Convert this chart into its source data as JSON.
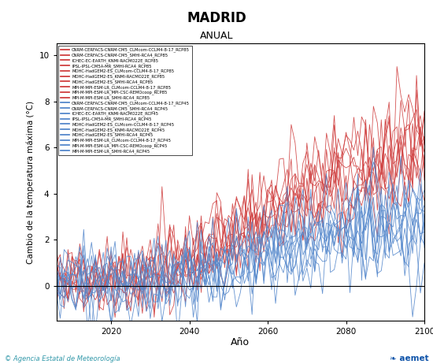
{
  "title": "MADRID",
  "subtitle": "ANUAL",
  "ylabel": "Cambio de la temperatura máxima (°C)",
  "xlabel": "Año",
  "xlim": [
    2006,
    2100
  ],
  "ylim": [
    -1.5,
    10.5
  ],
  "yticks": [
    0,
    2,
    4,
    6,
    8,
    10
  ],
  "xticks": [
    2020,
    2040,
    2060,
    2080,
    2100
  ],
  "rcp85_color": "#D04040",
  "rcp45_color": "#5588CC",
  "rcp85_labels": [
    "CNRM-CERFACS-CNRM-CM5_CLMcom-CCLM4-8-17_RCP85",
    "CNRM-CERFACS-CNRM-CM5_SMHI-RCA4_RCP85",
    "ICHEC-EC-EARTH_KNMI-RACMO22E_RCP85",
    "IPSL-IPSL-CM5A-MR_SMHI-RCA4_RCP85",
    "MOHC-HadGEM2-ES_CLMcom-CCLM4-8-17_RCP85",
    "MOHC-HadGEM2-ES_KNMI-RACMO22E_RCP85",
    "MOHC-HadGEM2-ES_SMHI-RCA4_RCP85",
    "MPI-M-MPI-ESM-LR_CLMcom-CCLM4-8-17_RCP85",
    "MPI-M-MPI-ESM-LR_MPI-CSC-REMOcoop_RCP85",
    "MPI-M-MPI-ESM-LR_SMHI-RCA4_RCP85"
  ],
  "rcp45_labels": [
    "CNRM-CERFACS-CNRM-CM5_CLMcom-CCLM4-8-17_RCP45",
    "CNRM-CERFACS-CNRM-CM5_SMHI-RCA4_RCP45",
    "ICHEC-EC-EARTH_KNMI-RACMO22E_RCP45",
    "IPSL-IPSL-CM5A-MR_SMHI-RCA4_RCP45",
    "MOHC-HadGEM2-ES_CLMcom-CCLM4-8-17_RCP45",
    "MOHC-HadGEM2-ES_KNMI-RACMO22E_RCP45",
    "MOHC-HadGEM2-ES_SMHI-RCA4_RCP45",
    "MPI-M-MPI-ESM-LR_CLMcom-CCLM4-8-17_RCP45",
    "MPI-M-MPI-ESM-LR_MPI-CSC-REMOcoop_RCP45",
    "MPI-M-MPI-ESM-LR_SMHI-RCA4_RCP45"
  ],
  "background_color": "#FFFFFF",
  "watermark_text": "© Agencia Estatal de Meteorología",
  "watermark_color": "#3399AA",
  "aemet_color": "#1155AA",
  "linewidth": 0.6,
  "seed": 42,
  "n_years": 95,
  "start_year": 2006,
  "rcp85_end_vals": [
    5.5,
    6.2,
    5.8,
    7.0,
    7.8,
    7.2,
    6.5,
    5.3,
    6.0,
    6.8
  ],
  "rcp45_end_vals": [
    2.8,
    3.2,
    2.5,
    3.8,
    4.2,
    3.5,
    3.0,
    2.6,
    2.9,
    3.3
  ],
  "noise_annual": 0.7,
  "noise_grow85": 0.4,
  "noise_grow45": 0.3
}
